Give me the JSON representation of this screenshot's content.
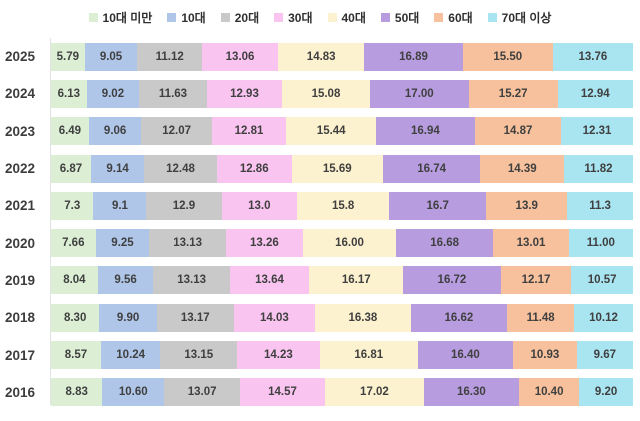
{
  "chart_data": {
    "type": "bar",
    "orientation": "horizontal",
    "stacked": true,
    "percent_stacked": true,
    "unit": "%",
    "xlim": [
      0,
      100
    ],
    "grid": false,
    "legend_position": "top",
    "title": "",
    "xlabel": "",
    "ylabel": "",
    "categories": [
      "2025",
      "2024",
      "2023",
      "2022",
      "2021",
      "2020",
      "2019",
      "2018",
      "2017",
      "2016"
    ],
    "series": [
      {
        "name": "10대 미만",
        "color": "#dcefd5",
        "values": [
          "5.79",
          "6.13",
          "6.49",
          "6.87",
          "7.3",
          "7.66",
          "8.04",
          "8.30",
          "8.57",
          "8.83"
        ]
      },
      {
        "name": "10대",
        "color": "#afc6e9",
        "values": [
          "9.05",
          "9.02",
          "9.06",
          "9.14",
          "9.1",
          "9.25",
          "9.56",
          "9.90",
          "10.24",
          "10.60"
        ]
      },
      {
        "name": "20대",
        "color": "#c9c9c9",
        "values": [
          "11.12",
          "11.63",
          "12.07",
          "12.48",
          "12.9",
          "13.13",
          "13.13",
          "13.17",
          "13.15",
          "13.07"
        ]
      },
      {
        "name": "30대",
        "color": "#f9c4f0",
        "values": [
          "13.06",
          "12.93",
          "12.81",
          "12.86",
          "13.0",
          "13.26",
          "13.64",
          "14.03",
          "14.23",
          "14.57"
        ]
      },
      {
        "name": "40대",
        "color": "#fdf2cf",
        "values": [
          "14.83",
          "15.08",
          "15.44",
          "15.69",
          "15.8",
          "16.00",
          "16.17",
          "16.38",
          "16.81",
          "17.02"
        ]
      },
      {
        "name": "50대",
        "color": "#b79de0",
        "values": [
          "16.89",
          "17.00",
          "16.94",
          "16.74",
          "16.7",
          "16.68",
          "16.72",
          "16.62",
          "16.40",
          "16.30"
        ]
      },
      {
        "name": "60대",
        "color": "#f6c19c",
        "values": [
          "15.50",
          "15.27",
          "14.87",
          "14.39",
          "13.9",
          "13.01",
          "12.17",
          "11.48",
          "10.93",
          "10.40"
        ]
      },
      {
        "name": "70대 이상",
        "color": "#a9e4f1",
        "values": [
          "13.76",
          "12.94",
          "12.31",
          "11.82",
          "11.3",
          "11.00",
          "10.57",
          "10.12",
          "9.67",
          "9.20"
        ]
      }
    ]
  }
}
